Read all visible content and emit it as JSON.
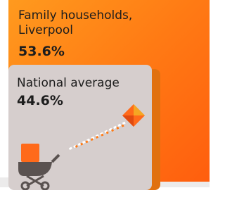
{
  "local": {
    "label": "Family households, Liverpool",
    "value": "53.6%"
  },
  "national": {
    "label": "National average",
    "value": "44.6%"
  }
}
